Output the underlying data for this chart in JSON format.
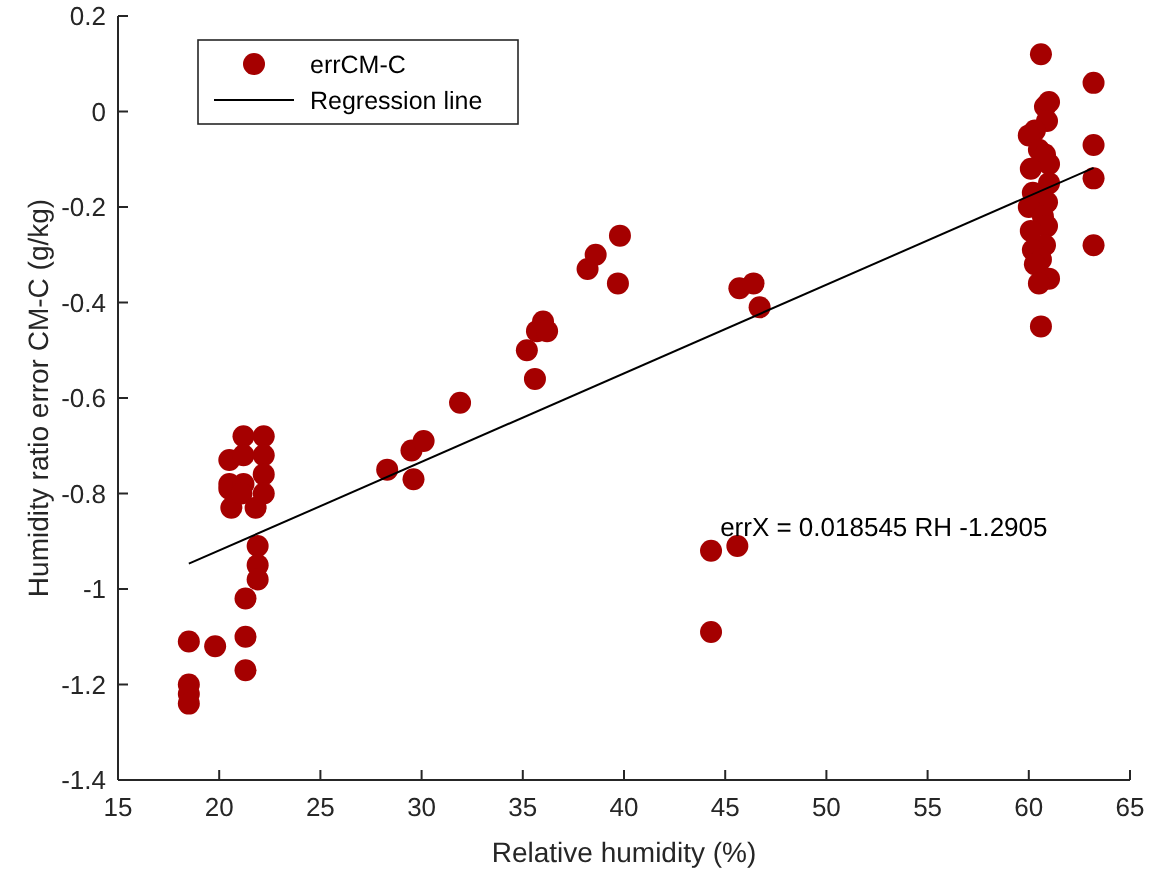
{
  "chart_data": {
    "type": "scatter",
    "xlabel": "Relative humidity (%)",
    "ylabel": "Humidity ratio error CM-C (g/kg)",
    "xlim": [
      15,
      65
    ],
    "xticks": [
      15,
      20,
      25,
      30,
      35,
      40,
      45,
      50,
      55,
      60,
      65
    ],
    "ylim": [
      -1.4,
      0.2
    ],
    "yticks": [
      -1.4,
      -1.2,
      -1,
      -0.8,
      -0.6,
      -0.4,
      -0.2,
      0,
      0.2
    ],
    "grid": false,
    "legend": "top left",
    "annotations": [
      "errX = 0.018545 RH -1.2905"
    ],
    "series": [
      {
        "name": "errCM-C",
        "color": "#a50000",
        "marker": "circle",
        "x": [
          18.5,
          18.5,
          18.5,
          18.5,
          19.8,
          20.5,
          20.5,
          20.5,
          20.6,
          21.2,
          21.2,
          21.2,
          21.1,
          21.3,
          21.3,
          21.3,
          21.9,
          21.9,
          21.9,
          21.8,
          22.2,
          22.2,
          22.2,
          22.2,
          28.3,
          29.5,
          29.6,
          30.1,
          31.9,
          35.2,
          35.6,
          35.7,
          36.0,
          36.2,
          38.2,
          38.6,
          39.8,
          39.7,
          44.3,
          44.3,
          45.6,
          45.7,
          46.4,
          46.7,
          60.6,
          60.6,
          60.8,
          61.0,
          60.9,
          60.3,
          60.0,
          60.5,
          60.8,
          61.0,
          60.1,
          61.0,
          60.2,
          60.9,
          60.0,
          60.7,
          60.9,
          60.1,
          60.8,
          60.2,
          60.6,
          61.0,
          60.3,
          60.5,
          63.2,
          63.2,
          63.2,
          63.2
        ],
        "values": [
          -1.11,
          -1.2,
          -1.22,
          -1.24,
          -1.12,
          -0.73,
          -0.78,
          -0.79,
          -0.83,
          -0.68,
          -0.72,
          -0.78,
          -0.8,
          -1.02,
          -1.1,
          -1.17,
          -0.91,
          -0.95,
          -0.98,
          -0.83,
          -0.68,
          -0.72,
          -0.76,
          -0.8,
          -0.75,
          -0.71,
          -0.77,
          -0.69,
          -0.61,
          -0.5,
          -0.56,
          -0.46,
          -0.44,
          -0.46,
          -0.33,
          -0.3,
          -0.26,
          -0.36,
          -0.92,
          -1.09,
          -0.91,
          -0.37,
          -0.36,
          -0.41,
          0.12,
          -0.45,
          0.01,
          0.02,
          -0.02,
          -0.04,
          -0.05,
          -0.08,
          -0.09,
          -0.11,
          -0.12,
          -0.15,
          -0.17,
          -0.19,
          -0.2,
          -0.22,
          -0.24,
          -0.25,
          -0.28,
          -0.29,
          -0.31,
          -0.35,
          -0.32,
          -0.36,
          0.06,
          -0.07,
          -0.14,
          -0.28
        ]
      },
      {
        "name": "Regression line",
        "type": "line",
        "color": "#000000",
        "marker": "none",
        "line_style": "solid",
        "x": [
          18.5,
          63.2
        ],
        "values": [
          -0.947,
          -0.118
        ]
      }
    ]
  }
}
